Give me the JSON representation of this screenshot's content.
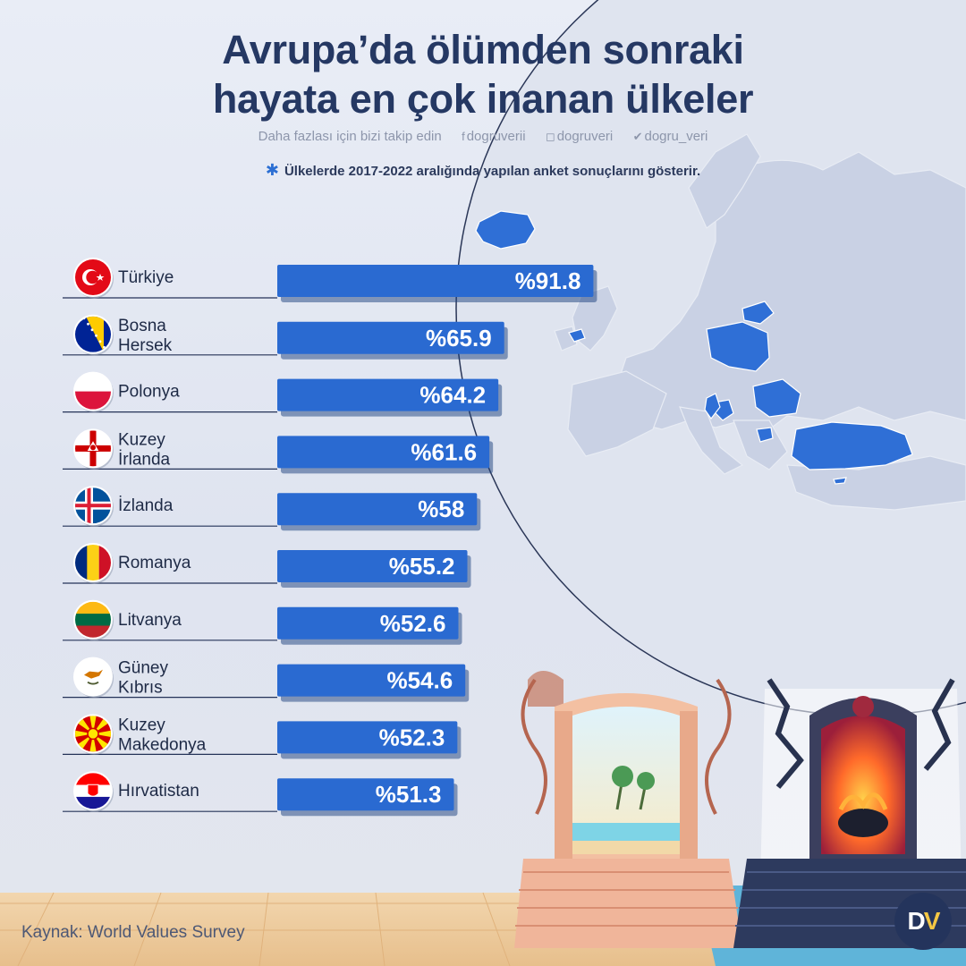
{
  "title_lines": [
    "Avrupa’da ölümden sonraki",
    "hayata en çok inanan ülkeler"
  ],
  "social": {
    "follow_text": "Daha fazlası için bizi takip edin",
    "facebook": "dogruverii",
    "instagram": "dogruveri",
    "twitter": "dogru_veri"
  },
  "note": "Ülkelerde 2017-2022 aralığında yapılan anket sonuçlarını gösterir.",
  "source": "Kaynak: World Values Survey",
  "colors": {
    "bar": "#2a6ad1",
    "bar_shadow": "#1b3f7e",
    "title": "#253863",
    "map_highlight": "#2f6fd6",
    "map_base": "#c9d1e4"
  },
  "chart_data": {
    "type": "bar",
    "orientation": "horizontal",
    "value_prefix": "%",
    "categories": [
      "Türkiye",
      "Bosna\nHersek",
      "Polonya",
      "Kuzey\nİrlanda",
      "İzlanda",
      "Romanya",
      "Litvanya",
      "Güney\nKıbrıs",
      "Kuzey\nMakedonya",
      "Hırvatistan"
    ],
    "values": [
      91.8,
      65.9,
      64.2,
      61.6,
      58,
      55.2,
      52.6,
      54.6,
      52.3,
      51.3
    ],
    "labels": [
      "%91.8",
      "%65.9",
      "%64.2",
      "%61.6",
      "%58",
      "%55.2",
      "%52.6",
      "%54.6",
      "%52.3",
      "%51.3"
    ],
    "flags": [
      "turkey-flag-icon",
      "bosnia-flag-icon",
      "poland-flag-icon",
      "northern-ireland-flag-icon",
      "iceland-flag-icon",
      "romania-flag-icon",
      "lithuania-flag-icon",
      "cyprus-flag-icon",
      "north-macedonia-flag-icon",
      "croatia-flag-icon"
    ],
    "xlim": [
      0,
      100
    ]
  }
}
